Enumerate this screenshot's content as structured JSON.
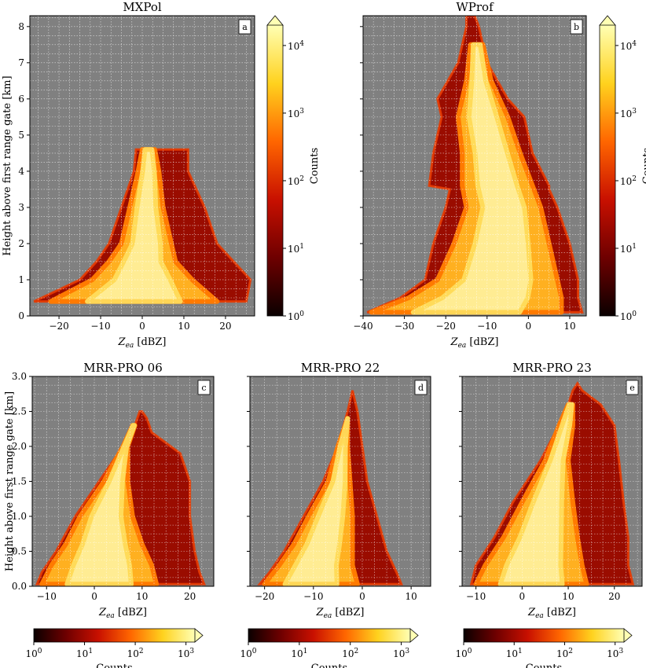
{
  "chart_data": [
    {
      "type": "heatmap",
      "title": "MXPol",
      "panel_label": "a",
      "xlabel": "Z_ea [dBZ]",
      "ylabel": "Height above first range gate [km]",
      "xlim": [
        -27,
        27
      ],
      "ylim": [
        0,
        8.3
      ],
      "xticks": [
        -20,
        -10,
        0,
        10,
        20
      ],
      "yticks": [
        0,
        1,
        2,
        3,
        4,
        5,
        6,
        7,
        8
      ],
      "colorbar": {
        "label": "Counts",
        "scale": "log",
        "range": [
          1,
          20000
        ],
        "ticks": [
          "10^0",
          "10^1",
          "10^2",
          "10^3",
          "10^4"
        ],
        "extend": "max"
      },
      "grid": true,
      "shape": [
        [
          0.4,
          -26,
          25
        ],
        [
          1.0,
          -15,
          26
        ],
        [
          1.5,
          -11,
          22
        ],
        [
          2.0,
          -8,
          18
        ],
        [
          3.0,
          -5,
          15
        ],
        [
          4.0,
          -2,
          11
        ],
        [
          4.6,
          -1.5,
          11
        ]
      ],
      "core": [
        [
          0.4,
          -22,
          18
        ],
        [
          1.0,
          -12,
          12
        ],
        [
          1.5,
          -8,
          8
        ],
        [
          2.0,
          -5,
          7
        ],
        [
          3.0,
          -3,
          5
        ],
        [
          4.0,
          -1,
          4
        ],
        [
          4.6,
          0,
          3
        ]
      ]
    },
    {
      "type": "heatmap",
      "title": "WProf",
      "panel_label": "b",
      "xlabel": "Z_ea [dBZ]",
      "ylabel": "",
      "xlim": [
        -40,
        14
      ],
      "ylim": [
        0,
        8.3
      ],
      "xticks": [
        -40,
        -30,
        -20,
        -10,
        0,
        10
      ],
      "yticks": [
        0,
        1,
        2,
        3,
        4,
        5,
        6,
        7,
        8
      ],
      "colorbar": {
        "label": "Counts",
        "scale": "log",
        "range": [
          1,
          20000
        ],
        "ticks": [
          "10^0",
          "10^1",
          "10^2",
          "10^3",
          "10^4"
        ],
        "extend": "max"
      },
      "grid": true,
      "shape": [
        [
          0.1,
          -39,
          13
        ],
        [
          0.5,
          -31,
          12
        ],
        [
          1.0,
          -25,
          12
        ],
        [
          2.0,
          -23,
          10
        ],
        [
          3.0,
          -20,
          7
        ],
        [
          3.5,
          -19,
          5
        ],
        [
          3.6,
          -24,
          5
        ],
        [
          4.5,
          -23,
          1
        ],
        [
          5.5,
          -21,
          -1
        ],
        [
          6.0,
          -22,
          -5
        ],
        [
          7.0,
          -17,
          -10
        ],
        [
          8.0,
          -15,
          -12
        ],
        [
          8.3,
          -15,
          -13
        ]
      ],
      "core": [
        [
          0.1,
          -38,
          8
        ],
        [
          0.5,
          -29,
          8
        ],
        [
          1.0,
          -22,
          7
        ],
        [
          2.0,
          -18,
          5
        ],
        [
          3.0,
          -15,
          3
        ],
        [
          3.6,
          -16,
          1
        ],
        [
          4.5,
          -16,
          -2
        ],
        [
          5.5,
          -17,
          -5
        ],
        [
          6.5,
          -15,
          -9
        ],
        [
          7.5,
          -14,
          -11
        ]
      ]
    },
    {
      "type": "heatmap",
      "title": "MRR-PRO 06",
      "panel_label": "c",
      "xlabel": "Z_ea [dBZ]",
      "ylabel": "Height above first range gate [km]",
      "xlim": [
        -13,
        25
      ],
      "ylim": [
        0,
        3.0
      ],
      "xticks": [
        -10,
        0,
        10,
        20
      ],
      "yticks": [
        0.0,
        0.5,
        1.0,
        1.5,
        2.0,
        2.5,
        3.0
      ],
      "colorbar": {
        "label": "Counts",
        "scale": "log",
        "range": [
          1,
          1500
        ],
        "ticks": [
          "10^0",
          "10^1",
          "10^2",
          "10^3"
        ],
        "extend": "max"
      },
      "grid": true,
      "shape": [
        [
          0.03,
          -12,
          23
        ],
        [
          0.2,
          -11,
          22
        ],
        [
          0.5,
          -8,
          21
        ],
        [
          1.0,
          -4,
          20
        ],
        [
          1.5,
          1,
          20
        ],
        [
          1.9,
          5,
          18
        ],
        [
          2.2,
          8,
          12
        ],
        [
          2.4,
          9,
          11
        ],
        [
          2.5,
          9.5,
          10
        ]
      ],
      "core": [
        [
          0.03,
          -11,
          13
        ],
        [
          0.3,
          -9,
          12
        ],
        [
          0.6,
          -6,
          10
        ],
        [
          1.0,
          -3,
          8
        ],
        [
          1.5,
          2,
          7
        ],
        [
          2.0,
          6,
          7
        ],
        [
          2.3,
          8,
          8.5
        ]
      ]
    },
    {
      "type": "heatmap",
      "title": "MRR-PRO 22",
      "panel_label": "d",
      "xlabel": "Z_ea [dBZ]",
      "ylabel": "",
      "xlim": [
        -23,
        14
      ],
      "ylim": [
        0,
        3.0
      ],
      "xticks": [
        -20,
        -10,
        0,
        10
      ],
      "yticks": [
        0.0,
        0.5,
        1.0,
        1.5,
        2.0,
        2.5,
        3.0
      ],
      "colorbar": {
        "label": "Counts",
        "scale": "log",
        "range": [
          1,
          1500
        ],
        "ticks": [
          "10^0",
          "10^1",
          "10^2",
          "10^3"
        ],
        "extend": "max"
      },
      "grid": true,
      "shape": [
        [
          0.03,
          -21,
          8
        ],
        [
          0.2,
          -19,
          7
        ],
        [
          0.5,
          -16,
          5
        ],
        [
          1.0,
          -12,
          3
        ],
        [
          1.5,
          -8,
          1
        ],
        [
          2.0,
          -5,
          0
        ],
        [
          2.5,
          -3,
          -1
        ],
        [
          2.8,
          -2,
          -2
        ]
      ],
      "core": [
        [
          0.03,
          -20,
          -1
        ],
        [
          0.3,
          -17,
          -2
        ],
        [
          0.6,
          -14,
          -2
        ],
        [
          1.0,
          -11,
          -2
        ],
        [
          1.5,
          -7,
          -2.5
        ],
        [
          2.0,
          -5,
          -3
        ],
        [
          2.4,
          -3,
          -3
        ]
      ]
    },
    {
      "type": "heatmap",
      "title": "MRR-PRO 23",
      "panel_label": "e",
      "xlabel": "Z_ea [dBZ]",
      "ylabel": "",
      "xlim": [
        -13,
        26
      ],
      "ylim": [
        0,
        3.0
      ],
      "xticks": [
        -10,
        0,
        10,
        20
      ],
      "yticks": [
        0.0,
        0.5,
        1.0,
        1.5,
        2.0,
        2.5,
        3.0
      ],
      "colorbar": {
        "label": "Counts",
        "scale": "log",
        "range": [
          1,
          1500
        ],
        "ticks": [
          "10^0",
          "10^1",
          "10^2",
          "10^3"
        ],
        "extend": "max"
      },
      "grid": true,
      "shape": [
        [
          0.03,
          -11,
          24
        ],
        [
          0.3,
          -10,
          23
        ],
        [
          0.7,
          -6,
          23
        ],
        [
          1.2,
          -2,
          22
        ],
        [
          1.8,
          4,
          21
        ],
        [
          2.3,
          8,
          20
        ],
        [
          2.6,
          10,
          17
        ],
        [
          2.8,
          11,
          13
        ],
        [
          2.9,
          12,
          12
        ]
      ],
      "core": [
        [
          0.03,
          -10,
          14
        ],
        [
          0.3,
          -8,
          13
        ],
        [
          0.7,
          -4,
          12
        ],
        [
          1.2,
          0,
          11
        ],
        [
          1.8,
          5,
          10
        ],
        [
          2.3,
          8,
          11
        ],
        [
          2.6,
          10,
          11
        ]
      ]
    }
  ]
}
